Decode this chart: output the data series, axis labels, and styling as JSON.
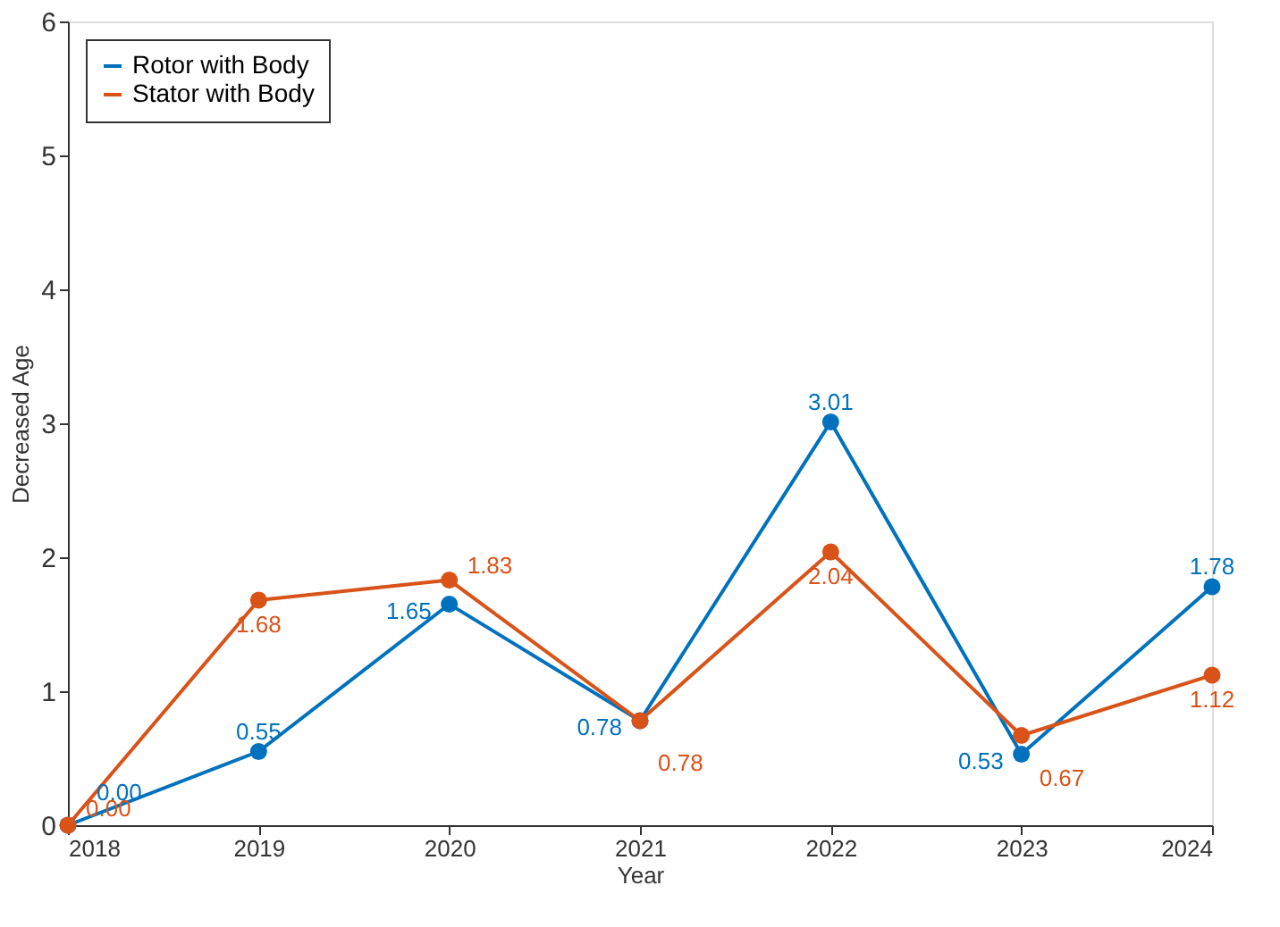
{
  "chart_data": {
    "type": "line",
    "xlabel": "Year",
    "ylabel": "Decreased Age",
    "x": [
      2018,
      2019,
      2020,
      2021,
      2022,
      2023,
      2024
    ],
    "series": [
      {
        "name": "Rotor with Body",
        "color": "#0072bd",
        "values": [
          0,
          0.55,
          1.65,
          0.78,
          3.01,
          0.53,
          1.78
        ],
        "value_labels": [
          "0.00",
          "0.55",
          "1.65",
          "0.78",
          "3.01",
          "0.53",
          "1.78"
        ]
      },
      {
        "name": "Stator with Body",
        "color": "#d95319",
        "values": [
          0,
          1.68,
          1.83,
          0.78,
          2.04,
          0.67,
          1.12
        ],
        "value_labels": [
          "0.00",
          "1.68",
          "1.83",
          "0.78",
          "2.04",
          "0.67",
          "1.12"
        ]
      }
    ],
    "xlim": [
      2018,
      2024
    ],
    "xticks": [
      2018,
      2019,
      2020,
      2021,
      2022,
      2023,
      2024
    ],
    "ylim": [
      0,
      6
    ],
    "yticks": [
      0,
      1,
      2,
      3,
      4,
      5,
      6
    ],
    "grid": false,
    "legend": "top left",
    "marker": "circle",
    "line_style": "solid"
  }
}
